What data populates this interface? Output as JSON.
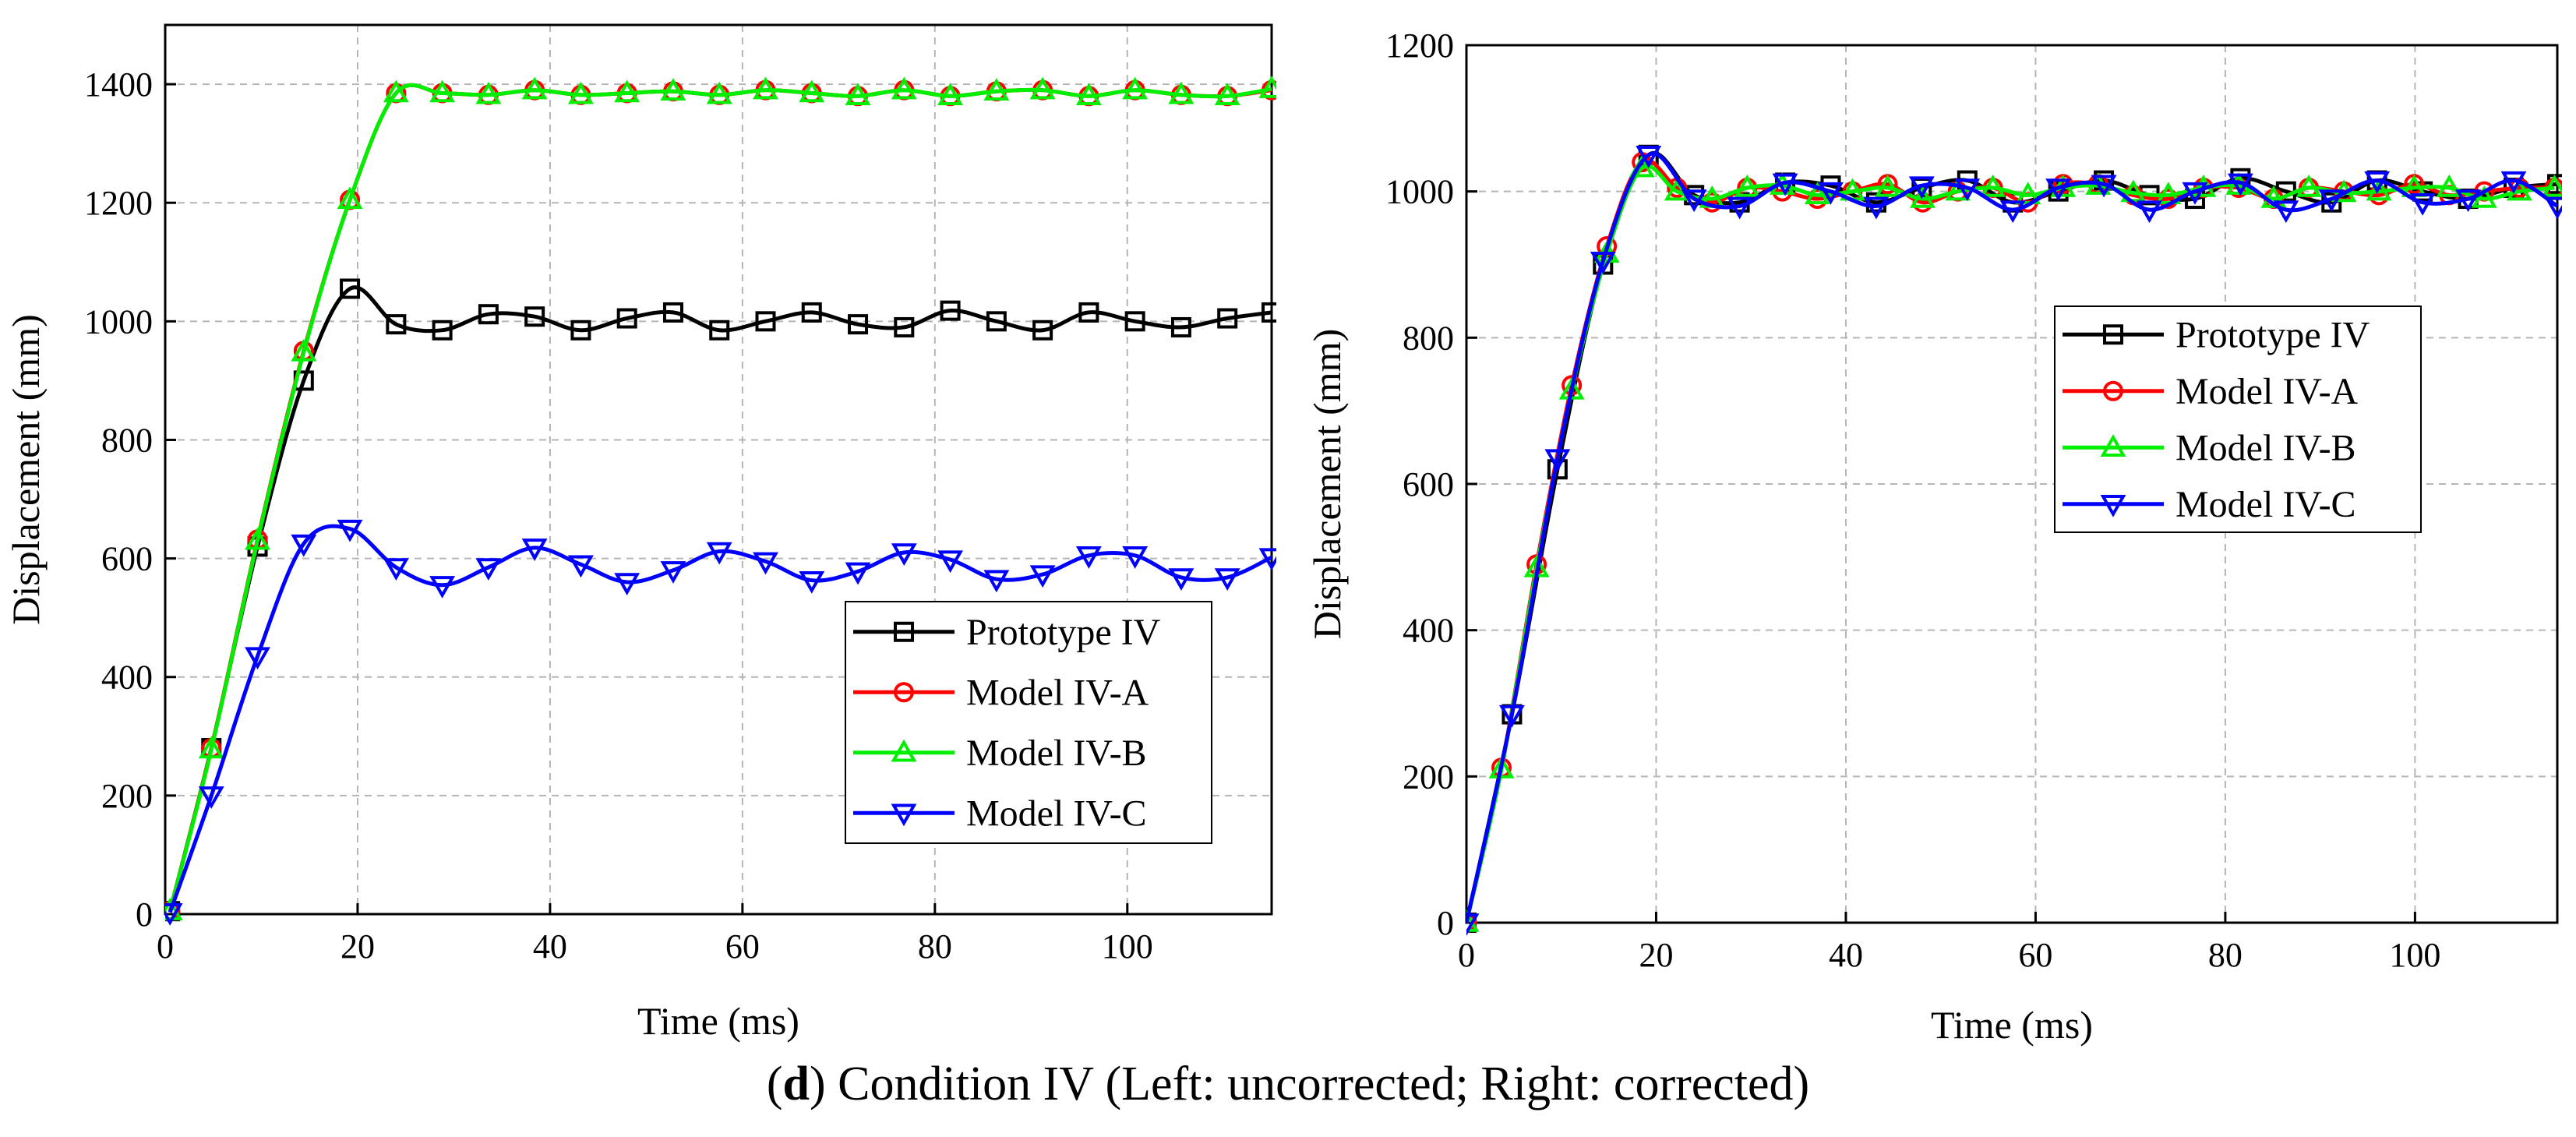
{
  "caption": {
    "letter": "d",
    "text": "Condition IV (Left: uncorrected; Right: corrected)"
  },
  "colors": {
    "Prototype IV": "#000000",
    "Model IV-A": "#ff0000",
    "Model IV-B": "#00ee00",
    "Model IV-C": "#0000ff"
  },
  "chart_data": [
    {
      "type": "line",
      "title": "Left: uncorrected",
      "xlabel": "Time (ms)",
      "ylabel": "Displacement (mm)",
      "xlim": [
        0,
        115
      ],
      "ylim": [
        0,
        1500
      ],
      "xticks": [
        0,
        20,
        40,
        60,
        80,
        100
      ],
      "yticks": [
        0,
        200,
        400,
        600,
        800,
        1000,
        1200,
        1400
      ],
      "grid": true,
      "legend_position": "lower-right",
      "series": [
        {
          "name": "Prototype IV",
          "marker": "square",
          "x": [
            0.5,
            4.8,
            9.6,
            14.4,
            19.2,
            24,
            28.8,
            33.6,
            38.4,
            43.2,
            48,
            52.8,
            57.6,
            62.4,
            67.2,
            72,
            76.8,
            81.6,
            86.4,
            91.2,
            96,
            100.8,
            105.6,
            110.4,
            115
          ],
          "y": [
            5,
            280,
            620,
            900,
            1055,
            995,
            985,
            1012,
            1008,
            985,
            1005,
            1015,
            985,
            1000,
            1015,
            995,
            990,
            1018,
            1000,
            985,
            1015,
            1000,
            990,
            1005,
            1015
          ]
        },
        {
          "name": "Model IV-A",
          "marker": "circle",
          "x": [
            0.5,
            4.8,
            9.6,
            14.4,
            19.2,
            24,
            28.8,
            33.6,
            38.4,
            43.2,
            48,
            52.8,
            57.6,
            62.4,
            67.2,
            72,
            76.8,
            81.6,
            86.4,
            91.2,
            96,
            100.8,
            105.6,
            110.4,
            115
          ],
          "y": [
            5,
            280,
            632,
            950,
            1205,
            1385,
            1385,
            1382,
            1390,
            1382,
            1385,
            1388,
            1382,
            1390,
            1385,
            1380,
            1390,
            1380,
            1388,
            1390,
            1380,
            1390,
            1382,
            1380,
            1390
          ]
        },
        {
          "name": "Model IV-B",
          "marker": "triangle-up",
          "x": [
            0.5,
            4.8,
            9.6,
            14.4,
            19.2,
            24,
            28.8,
            33.6,
            38.4,
            43.2,
            48,
            52.8,
            57.6,
            62.4,
            67.2,
            72,
            76.8,
            81.6,
            86.4,
            91.2,
            96,
            100.8,
            105.6,
            110.4,
            115
          ],
          "y": [
            5,
            278,
            630,
            948,
            1205,
            1385,
            1385,
            1382,
            1390,
            1382,
            1385,
            1388,
            1382,
            1390,
            1385,
            1380,
            1390,
            1380,
            1388,
            1390,
            1380,
            1390,
            1382,
            1380,
            1392
          ]
        },
        {
          "name": "Model IV-C",
          "marker": "triangle-down",
          "x": [
            0.5,
            4.8,
            9.6,
            14.4,
            19.2,
            24,
            28.8,
            33.6,
            38.4,
            43.2,
            48,
            52.8,
            57.6,
            62.4,
            67.2,
            72,
            76.8,
            81.6,
            86.4,
            91.2,
            96,
            100.8,
            105.6,
            110.4,
            115
          ],
          "y": [
            3,
            200,
            435,
            625,
            650,
            585,
            555,
            585,
            618,
            590,
            560,
            580,
            612,
            595,
            563,
            578,
            610,
            598,
            565,
            573,
            605,
            605,
            568,
            568,
            602
          ]
        }
      ]
    },
    {
      "type": "line",
      "title": "Right: corrected",
      "xlabel": "Time (ms)",
      "ylabel": "Displacement (mm)",
      "xlim": [
        0,
        115
      ],
      "ylim": [
        0,
        1200
      ],
      "xticks": [
        0,
        20,
        40,
        60,
        80,
        100
      ],
      "yticks": [
        0,
        200,
        400,
        600,
        800,
        1000,
        1200
      ],
      "grid": true,
      "legend_position": "center-right",
      "series": [
        {
          "name": "Prototype IV",
          "marker": "square",
          "x": [
            0,
            4.8,
            9.6,
            14.4,
            19.2,
            24,
            28.8,
            33.6,
            38.4,
            43.2,
            48,
            52.8,
            57.6,
            62.4,
            67.2,
            72,
            76.8,
            81.6,
            86.4,
            91.2,
            96,
            100.8,
            105.6,
            110.4,
            115
          ],
          "y": [
            0,
            285,
            620,
            900,
            1050,
            995,
            985,
            1012,
            1008,
            985,
            1005,
            1015,
            985,
            1000,
            1015,
            995,
            990,
            1018,
            1000,
            985,
            1015,
            1000,
            990,
            1005,
            1010
          ]
        },
        {
          "name": "Model IV-A",
          "marker": "circle",
          "x": [
            0,
            3.7,
            7.4,
            11.1,
            14.8,
            18.5,
            22.2,
            25.9,
            29.6,
            33.3,
            37,
            40.7,
            44.4,
            48.1,
            51.8,
            55.5,
            59.2,
            62.9,
            66.6,
            70.3,
            74,
            77.7,
            81.4,
            85.1,
            88.8,
            92.5,
            96.2,
            99.9,
            103.6,
            107.3,
            111,
            114.7
          ],
          "y": [
            0,
            212,
            490,
            735,
            925,
            1040,
            1005,
            985,
            1005,
            1000,
            990,
            1000,
            1010,
            985,
            1000,
            1005,
            985,
            1010,
            1010,
            995,
            990,
            1005,
            1005,
            990,
            1005,
            1000,
            995,
            1010,
            995,
            1000,
            1005,
            1005
          ]
        },
        {
          "name": "Model IV-B",
          "marker": "triangle-up",
          "x": [
            0,
            3.7,
            7.4,
            11.1,
            14.8,
            18.5,
            22.2,
            25.9,
            29.6,
            33.3,
            37,
            40.7,
            44.4,
            48.1,
            51.8,
            55.5,
            59.2,
            62.9,
            66.6,
            70.3,
            74,
            77.7,
            81.4,
            85.1,
            88.8,
            92.5,
            96.2,
            99.9,
            103.6,
            107.3,
            111,
            114.7
          ],
          "y": [
            0,
            210,
            485,
            728,
            915,
            1032,
            1000,
            990,
            1005,
            1008,
            995,
            1000,
            1005,
            990,
            1000,
            1005,
            995,
            1005,
            1008,
            998,
            995,
            1005,
            1008,
            990,
            1005,
            998,
            1000,
            1005,
            1005,
            990,
            1000,
            1005
          ]
        },
        {
          "name": "Model IV-C",
          "marker": "triangle-down",
          "x": [
            0,
            4.8,
            9.6,
            14.4,
            19.2,
            24,
            28.8,
            33.6,
            38.4,
            43.2,
            48,
            52.8,
            57.6,
            62.4,
            67.2,
            72,
            76.8,
            81.6,
            86.4,
            91.2,
            96,
            100.8,
            105.6,
            110.4,
            115
          ],
          "y": [
            0,
            285,
            635,
            905,
            1050,
            990,
            980,
            1012,
            1000,
            980,
            1008,
            1005,
            975,
            1005,
            1010,
            975,
            1000,
            1012,
            975,
            990,
            1015,
            985,
            990,
            1015,
            980
          ]
        }
      ]
    }
  ]
}
